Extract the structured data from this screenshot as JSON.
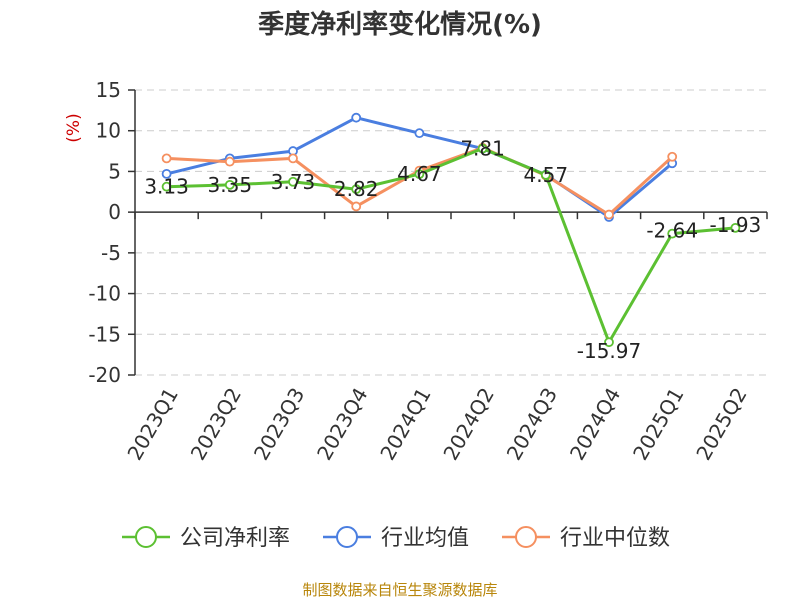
{
  "chart_data": {
    "type": "line",
    "title": "季度净利率变化情况(%)",
    "ylabel": "(%)",
    "xlabel": "",
    "ylim": [
      -20,
      15
    ],
    "yticks": [
      "15",
      "10",
      "5",
      "0",
      "-5",
      "-10",
      "-15",
      "-20"
    ],
    "grid": true,
    "legend_position": "bottom",
    "categories": [
      "2023Q1",
      "2023Q2",
      "2023Q3",
      "2023Q4",
      "2024Q1",
      "2024Q2",
      "2024Q3",
      "2024Q4",
      "2025Q1",
      "2025Q2"
    ],
    "series": [
      {
        "name": "公司净利率",
        "color": "#5cc032",
        "values": [
          3.13,
          3.35,
          3.73,
          2.82,
          4.67,
          7.81,
          4.57,
          -15.97,
          -2.64,
          -1.93
        ],
        "labels": [
          "3.13",
          "3.35",
          "3.73",
          "2.82",
          "4.67",
          "7.81",
          "4.57",
          "-15.97",
          "-2.64",
          "-1.93"
        ]
      },
      {
        "name": "行业均值",
        "color": "#4a7ee0",
        "values": [
          4.7,
          6.6,
          7.5,
          11.6,
          9.7,
          7.8,
          4.6,
          -0.6,
          6.0,
          null
        ]
      },
      {
        "name": "行业中位数",
        "color": "#f59060",
        "values": [
          6.6,
          6.2,
          6.6,
          0.7,
          5.1,
          7.9,
          4.5,
          -0.3,
          6.8,
          null
        ]
      }
    ]
  },
  "source": "制图数据来自恒生聚源数据库",
  "colors": {
    "grid": "#cccccc",
    "axis": "#333333",
    "ylabel": "#cc0000",
    "source": "#b8860b"
  }
}
